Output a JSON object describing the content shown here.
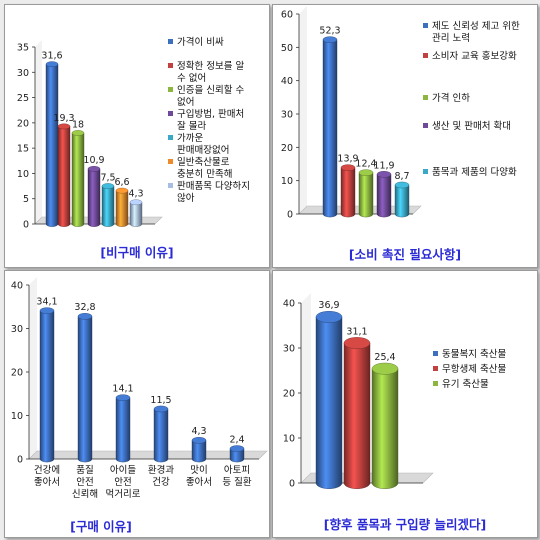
{
  "colors": {
    "blue": "#3d6fbf",
    "red": "#c0413e",
    "green": "#8cb640",
    "purple": "#6e4a98",
    "teal": "#3aa8c6",
    "orange": "#ef8a2c",
    "lightblue": "#a7bde6",
    "caption": "#2b2bd6",
    "axis": "#333333"
  },
  "chart_data": [
    {
      "type": "bar",
      "title": "[비구매 이유]",
      "ylim": [
        0,
        35
      ],
      "yticks": [
        "0",
        "5",
        "10",
        "15",
        "20",
        "25",
        "30",
        "35"
      ],
      "grid": false,
      "legend_position": "right",
      "series": [
        {
          "name": "가격이 비싸",
          "value": 31.6,
          "label": "31,6",
          "color": "blue"
        },
        {
          "name": "정확한 정보를 알 수 없어",
          "value": 19.3,
          "label": "19,3",
          "color": "red"
        },
        {
          "name": "인증을 신뢰할 수 없어",
          "value": 18,
          "label": "18",
          "color": "green"
        },
        {
          "name": "구입방법, 판매처 잘 몰라",
          "value": 10.9,
          "label": "10,9",
          "color": "purple"
        },
        {
          "name": "가까운 판매매장없어",
          "value": 7.5,
          "label": "7,5",
          "color": "teal"
        },
        {
          "name": "일반축산물로 충분히 만족해",
          "value": 6.6,
          "label": "6,6",
          "color": "orange"
        },
        {
          "name": "판매품목 다양하지 않아",
          "value": 4.3,
          "label": "4,3",
          "color": "lightblue"
        }
      ],
      "legend_lines": [
        [
          "가격이 비싸"
        ],
        [
          "정확한 정보를 알",
          "수 없어"
        ],
        [
          "인증을 신뢰할 수",
          "없어"
        ],
        [
          "구입방법, 판매처",
          "잘 몰라"
        ],
        [
          "가까운",
          "판매매장없어"
        ],
        [
          "일반축산물로",
          "충분히 만족해"
        ],
        [
          "판매품목 다양하지",
          "않아"
        ]
      ]
    },
    {
      "type": "bar",
      "title": "[소비 촉진 필요사항]",
      "ylim": [
        0,
        60
      ],
      "yticks": [
        "0",
        "10",
        "20",
        "30",
        "40",
        "50",
        "60"
      ],
      "grid": false,
      "legend_position": "right",
      "series": [
        {
          "name": "제도 신뢰성 제고 위한 관리 노력",
          "value": 52.3,
          "label": "52,3",
          "color": "blue"
        },
        {
          "name": "소비자 교육 홍보강화",
          "value": 13.9,
          "label": "13,9",
          "color": "red"
        },
        {
          "name": "가격 인하",
          "value": 12.4,
          "label": "12,4",
          "color": "green"
        },
        {
          "name": "생산 및 판매처 확대",
          "value": 11.9,
          "label": "11,9",
          "color": "purple"
        },
        {
          "name": "품목과 제품의 다양화",
          "value": 8.7,
          "label": "8,7",
          "color": "teal"
        }
      ],
      "legend_lines": [
        [
          "제도 신뢰성 제고 위한",
          "관리 노력"
        ],
        [
          "소비자 교육 홍보강화"
        ],
        [
          "가격 인하"
        ],
        [
          "생산 및 판매처 확대"
        ],
        [
          "품목과 제품의 다양화"
        ]
      ]
    },
    {
      "type": "bar",
      "title": "[구매 이유]",
      "ylim": [
        0,
        40
      ],
      "yticks": [
        "0",
        "10",
        "20",
        "30",
        "40"
      ],
      "grid": false,
      "categories": [
        "건강에 좋아서",
        "품질 안전 신뢰해",
        "아이들 안전 먹거리로",
        "환경과 건강",
        "맛이 좋아서",
        "아토피 등 질환"
      ],
      "category_lines": [
        [
          "건강에",
          "좋아서"
        ],
        [
          "품질",
          "안전",
          "신뢰해"
        ],
        [
          "아이들",
          "안전",
          "먹거리로"
        ],
        [
          "환경과",
          "건강"
        ],
        [
          "맛이",
          "좋아서"
        ],
        [
          "아토피",
          "등 질환"
        ]
      ],
      "values": [
        34.1,
        32.8,
        14.1,
        11.5,
        4.3,
        2.4
      ],
      "labels": [
        "34,1",
        "32,8",
        "14,1",
        "11,5",
        "4,3",
        "2,4"
      ],
      "color": "blue"
    },
    {
      "type": "bar",
      "title": "[향후 품목과 구입량 늘리겠다]",
      "ylim": [
        0,
        40
      ],
      "yticks": [
        "0",
        "10",
        "20",
        "30",
        "40"
      ],
      "grid": false,
      "legend_position": "right",
      "series": [
        {
          "name": "동물복지 축산물",
          "value": 36.9,
          "label": "36,9",
          "color": "blue"
        },
        {
          "name": "무항생제 축산물",
          "value": 31.1,
          "label": "31,1",
          "color": "red"
        },
        {
          "name": "유기 축산물",
          "value": 25.4,
          "label": "25,4",
          "color": "green"
        }
      ],
      "legend_lines": [
        [
          "동물복지 축산물"
        ],
        [
          "무항생제 축산물"
        ],
        [
          "유기 축산물"
        ]
      ]
    }
  ]
}
